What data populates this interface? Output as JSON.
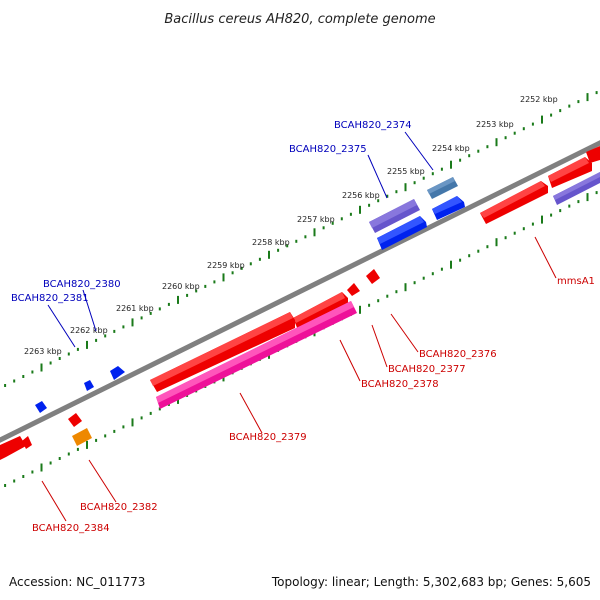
{
  "title": "Bacillus cereus AH820, complete genome",
  "footer": {
    "accession": "Accession: NC_011773",
    "topology": "Topology: linear; Length: 5,302,683 bp; Genes: 5,605"
  },
  "colors": {
    "backbone": "#808080",
    "tick": "#1a7a1a",
    "forward_label": "#0000bb",
    "reverse_label": "#cc0000",
    "red_gene": "#ee0000",
    "pink_gene": "#ee1199",
    "blue_gene": "#0022ee",
    "purple_gene": "#6655cc",
    "steel_gene": "#4477aa",
    "orange_gene": "#ee8800"
  },
  "tick_labels": [
    "2252 kbp",
    "2253 kbp",
    "2254 kbp",
    "2255 kbp",
    "2256 kbp",
    "2257 kbp",
    "2258 kbp",
    "2259 kbp",
    "2260 kbp",
    "2261 kbp",
    "2262 kbp",
    "2263 kbp"
  ],
  "gene_labels": {
    "forward": [
      "BCAH820_2374",
      "BCAH820_2375",
      "BCAH820_2380",
      "BCAH820_2381"
    ],
    "reverse": [
      "mmsA1",
      "BCAH820_2376",
      "BCAH820_2377",
      "BCAH820_2378",
      "BCAH820_2379",
      "BCAH820_2382",
      "BCAH820_2384"
    ]
  }
}
